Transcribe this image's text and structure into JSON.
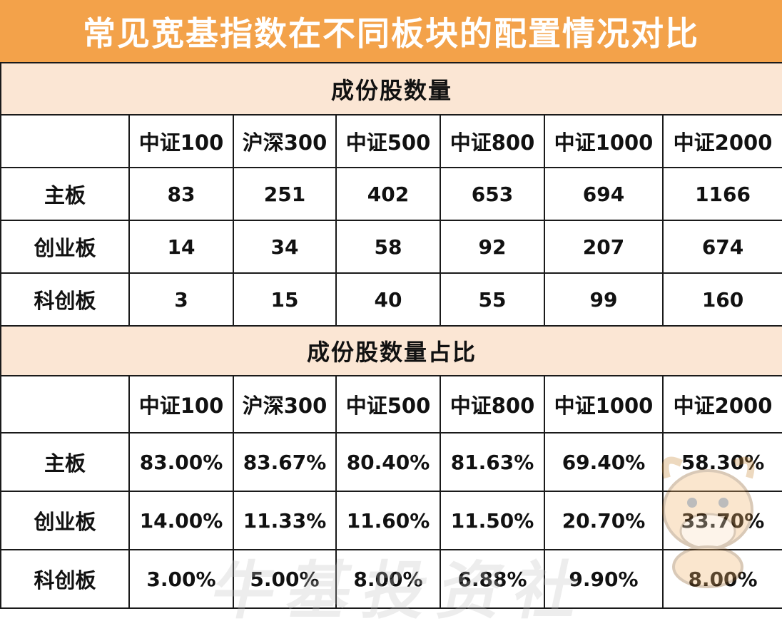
{
  "title": "常见宽基指数在不同板块的配置情况对比",
  "section1": {
    "heading": "成份股数量",
    "columns": [
      "中证100",
      "沪深300",
      "中证500",
      "中证800",
      "中证1000",
      "中证2000"
    ],
    "rows": [
      {
        "label": "主板",
        "values": [
          "83",
          "251",
          "402",
          "653",
          "694",
          "1166"
        ]
      },
      {
        "label": "创业板",
        "values": [
          "14",
          "34",
          "58",
          "92",
          "207",
          "674"
        ]
      },
      {
        "label": "科创板",
        "values": [
          "3",
          "15",
          "40",
          "55",
          "99",
          "160"
        ]
      }
    ]
  },
  "section2": {
    "heading": "成份股数量占比",
    "columns": [
      "中证100",
      "沪深300",
      "中证500",
      "中证800",
      "中证1000",
      "中证2000"
    ],
    "rows": [
      {
        "label": "主板",
        "values": [
          "83.00%",
          "83.67%",
          "80.40%",
          "81.63%",
          "69.40%",
          "58.30%"
        ]
      },
      {
        "label": "创业板",
        "values": [
          "14.00%",
          "11.33%",
          "11.60%",
          "11.50%",
          "20.70%",
          "33.70%"
        ]
      },
      {
        "label": "科创板",
        "values": [
          "3.00%",
          "5.00%",
          "8.00%",
          "6.88%",
          "9.90%",
          "8.00%"
        ]
      }
    ]
  },
  "watermark": "牛基投资社",
  "colors": {
    "title_bg": "#f3a24a",
    "section_bg": "#fbe6d4",
    "border": "#1a1a1a"
  }
}
